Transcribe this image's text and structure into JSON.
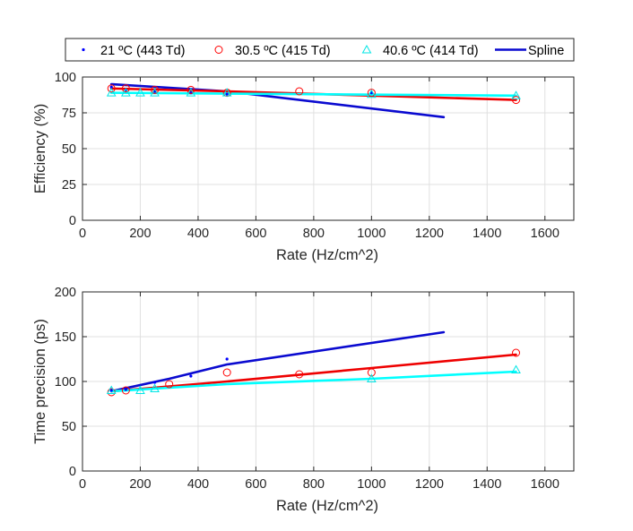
{
  "colors": {
    "s21": "#0000ff",
    "s30": "#ff0000",
    "s40": "#00e5e5",
    "spline21": "#0a0ad0",
    "spline30": "#ee0000",
    "spline40": "#00ffff",
    "axis": "#262626",
    "grid": "#e0e0e0"
  },
  "legend": {
    "placement": "top",
    "items": [
      {
        "label": "21 ºC (443 Td)",
        "marker": "dot",
        "color": "#0000ff"
      },
      {
        "label": "30.5 ºC (415 Td)",
        "marker": "circle",
        "color": "#ff0000"
      },
      {
        "label": "40.6 ºC (414 Td)",
        "marker": "triangle",
        "color": "#00e5e5"
      },
      {
        "label": "Spline",
        "marker": "line",
        "color": "#0a0ad0"
      }
    ]
  },
  "chart_data": [
    {
      "type": "scatter",
      "xlabel": "Rate (Hz/cm^2)",
      "ylabel": "Efficiency (%)",
      "xlim": [
        0,
        1700
      ],
      "ylim": [
        0,
        100
      ],
      "xticks": [
        0,
        200,
        400,
        600,
        800,
        1000,
        1200,
        1400,
        1600
      ],
      "yticks": [
        0,
        25,
        50,
        75,
        100
      ],
      "grid": true,
      "series": [
        {
          "name": "21 ºC (443 Td)",
          "marker": "dot",
          "x": [
            100,
            150,
            250,
            375,
            500,
            1000
          ],
          "y": [
            93,
            91,
            90,
            89,
            88,
            89
          ]
        },
        {
          "name": "30.5 ºC (415 Td)",
          "marker": "circle",
          "x": [
            100,
            150,
            250,
            375,
            500,
            750,
            1000,
            1500
          ],
          "y": [
            92,
            92,
            91,
            91,
            89,
            90,
            89,
            84
          ]
        },
        {
          "name": "40.6 ºC (414 Td)",
          "marker": "triangle",
          "x": [
            100,
            150,
            200,
            250,
            375,
            500,
            1000,
            1500
          ],
          "y": [
            89,
            89,
            89,
            89,
            89,
            89,
            88,
            87
          ]
        }
      ],
      "splines": [
        {
          "series": "21 ºC (443 Td)",
          "x": [
            100,
            500,
            1250
          ],
          "y": [
            95,
            90,
            72
          ]
        },
        {
          "series": "30.5 ºC (415 Td)",
          "x": [
            100,
            500,
            1500
          ],
          "y": [
            92,
            90,
            84
          ]
        },
        {
          "series": "40.6 ºC (414 Td)",
          "x": [
            100,
            1500
          ],
          "y": [
            89,
            87
          ]
        }
      ]
    },
    {
      "type": "scatter",
      "xlabel": "Rate (Hz/cm^2)",
      "ylabel": "Time precision (ps)",
      "xlim": [
        0,
        1700
      ],
      "ylim": [
        0,
        200
      ],
      "xticks": [
        0,
        200,
        400,
        600,
        800,
        1000,
        1200,
        1400,
        1600
      ],
      "yticks": [
        0,
        50,
        100,
        150,
        200
      ],
      "grid": true,
      "series": [
        {
          "name": "21 ºC (443 Td)",
          "marker": "dot",
          "x": [
            100,
            150,
            250,
            375,
            500
          ],
          "y": [
            90,
            91,
            99,
            106,
            125
          ]
        },
        {
          "name": "30.5 ºC (415 Td)",
          "marker": "circle",
          "x": [
            100,
            150,
            300,
            500,
            750,
            1000,
            1500
          ],
          "y": [
            88,
            90,
            97,
            110,
            108,
            110,
            132
          ]
        },
        {
          "name": "40.6 ºC (414 Td)",
          "marker": "triangle",
          "x": [
            100,
            200,
            250,
            1000,
            1500
          ],
          "y": [
            90,
            90,
            92,
            103,
            113
          ]
        }
      ],
      "splines": [
        {
          "series": "21 ºC (443 Td)",
          "x": [
            100,
            300,
            500,
            1250
          ],
          "y": [
            89,
            103,
            119,
            155
          ]
        },
        {
          "series": "30.5 ºC (415 Td)",
          "x": [
            100,
            500,
            1000,
            1500
          ],
          "y": [
            89,
            100,
            115,
            130
          ]
        },
        {
          "series": "40.6 ºC (414 Td)",
          "x": [
            100,
            500,
            1000,
            1500
          ],
          "y": [
            89,
            97,
            103,
            111
          ]
        }
      ]
    }
  ]
}
